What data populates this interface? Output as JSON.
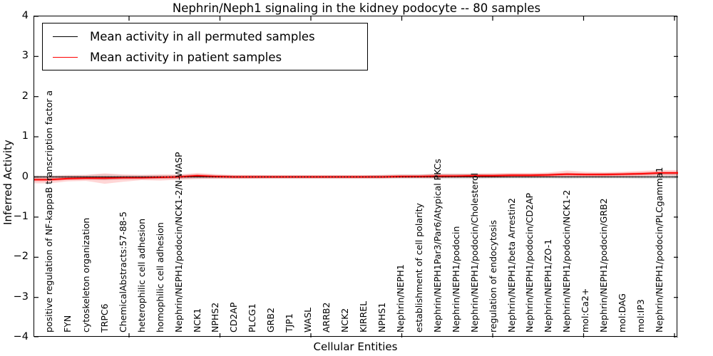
{
  "figure": {
    "title": "Nephrin/Neph1 signaling in the kidney podocyte -- 80 samples",
    "xlabel": "Cellular Entities",
    "ylabel": "Inferred Activity"
  },
  "chart_data": {
    "type": "line",
    "title": "Nephrin/Neph1 signaling in the kidney podocyte -- 80 samples",
    "xlabel": "Cellular Entities",
    "ylabel": "Inferred Activity",
    "ylim": [
      -4,
      4
    ],
    "yticks": [
      4,
      3,
      2,
      1,
      0,
      -1,
      -2,
      -3,
      -4
    ],
    "grid": false,
    "legend_position": "upper left",
    "zero_line_style": "dotted",
    "x_tick_label_rotation": 90,
    "categories": [
      "positive regulation of NF-kappaB transcription factor a",
      "FYN",
      "cytoskeleton organization",
      "TRPC6",
      "ChemicalAbstracts:57-88-5",
      "heterophilic cell adhesion",
      "homophilic cell adhesion",
      "Nephrin/NEPH1/podocin/NCK1-2/N-WASP",
      "NCK1",
      "NPHS2",
      "CD2AP",
      "PLCG1",
      "GRB2",
      "TJP1",
      "WASL",
      "ARRB2",
      "NCK2",
      "KIRREL",
      "NPHS1",
      "Nephrin/NEPH1",
      "establishment of cell polarity",
      "Nephrin/NEPH1Par3/Par6/Atypical PKCs",
      "Nephrin/NEPH1/podocin",
      "Nephrin/NEPH1/podocin/Cholesterol",
      "regulation of endocytosis",
      "Nephrin/NEPH1/beta Arrestin2",
      "Nephrin/NEPH1/podocin/CD2AP",
      "Nephrin/NEPH1/ZO-1",
      "Nephrin/NEPH1/podocin/NCK1-2",
      "mol:Ca2+",
      "Nephrin/NEPH1/podocin/GRB2",
      "mol:DAG",
      "mol:IP3",
      "Nephrin/NEPH1/podocin/PLCgamma1"
    ],
    "series": [
      {
        "name": "Mean activity in all permuted samples",
        "color": "#000000",
        "band_color": "rgba(120,120,120,0.25)",
        "values": [
          0,
          0,
          0,
          0,
          0,
          0,
          0,
          0,
          0,
          0,
          0,
          0,
          0,
          0,
          0,
          0,
          0,
          0,
          0,
          0,
          0,
          0,
          0,
          0,
          0,
          0,
          0,
          0,
          0,
          0,
          0,
          0,
          0,
          0
        ],
        "band_low": [
          -0.08,
          -0.06,
          -0.06,
          -0.08,
          -0.06,
          -0.05,
          -0.05,
          -0.05,
          -0.05,
          -0.04,
          -0.04,
          -0.04,
          -0.04,
          -0.04,
          -0.04,
          -0.04,
          -0.04,
          -0.04,
          -0.04,
          -0.04,
          -0.04,
          -0.05,
          -0.05,
          -0.05,
          -0.04,
          -0.04,
          -0.04,
          -0.04,
          -0.05,
          -0.04,
          -0.04,
          -0.04,
          -0.05,
          -0.05
        ],
        "band_high": [
          0.04,
          0.05,
          0.05,
          0.06,
          0.05,
          0.05,
          0.05,
          0.05,
          0.06,
          0.05,
          0.04,
          0.04,
          0.04,
          0.04,
          0.04,
          0.04,
          0.04,
          0.04,
          0.05,
          0.06,
          0.06,
          0.08,
          0.08,
          0.08,
          0.07,
          0.07,
          0.07,
          0.08,
          0.09,
          0.08,
          0.09,
          0.09,
          0.1,
          0.11
        ]
      },
      {
        "name": "Mean activity in patient samples",
        "color": "#ff0000",
        "band_color": "rgba(255,0,0,0.16)",
        "values": [
          -0.07,
          -0.04,
          -0.03,
          -0.03,
          -0.02,
          -0.02,
          -0.01,
          0.0,
          0.03,
          0.01,
          0.0,
          0.0,
          0.0,
          0.0,
          0.0,
          0.0,
          0.0,
          0.0,
          0.0,
          0.01,
          0.01,
          0.02,
          0.02,
          0.03,
          0.03,
          0.04,
          0.04,
          0.05,
          0.07,
          0.06,
          0.06,
          0.07,
          0.08,
          0.1
        ],
        "band_low": [
          -0.16,
          -0.11,
          -0.1,
          -0.17,
          -0.12,
          -0.08,
          -0.09,
          -0.07,
          -0.05,
          -0.05,
          -0.04,
          -0.04,
          -0.03,
          -0.03,
          -0.03,
          -0.03,
          -0.03,
          -0.03,
          -0.03,
          -0.03,
          -0.03,
          -0.03,
          -0.02,
          -0.02,
          -0.02,
          -0.01,
          0.0,
          0.0,
          0.0,
          0.0,
          0.01,
          0.01,
          0.02,
          0.03
        ],
        "band_high": [
          0.02,
          0.04,
          0.05,
          0.09,
          0.06,
          0.05,
          0.06,
          0.06,
          0.1,
          0.07,
          0.05,
          0.05,
          0.04,
          0.04,
          0.04,
          0.04,
          0.04,
          0.04,
          0.05,
          0.06,
          0.06,
          0.08,
          0.08,
          0.08,
          0.09,
          0.1,
          0.1,
          0.11,
          0.16,
          0.13,
          0.12,
          0.13,
          0.15,
          0.17
        ]
      }
    ]
  }
}
